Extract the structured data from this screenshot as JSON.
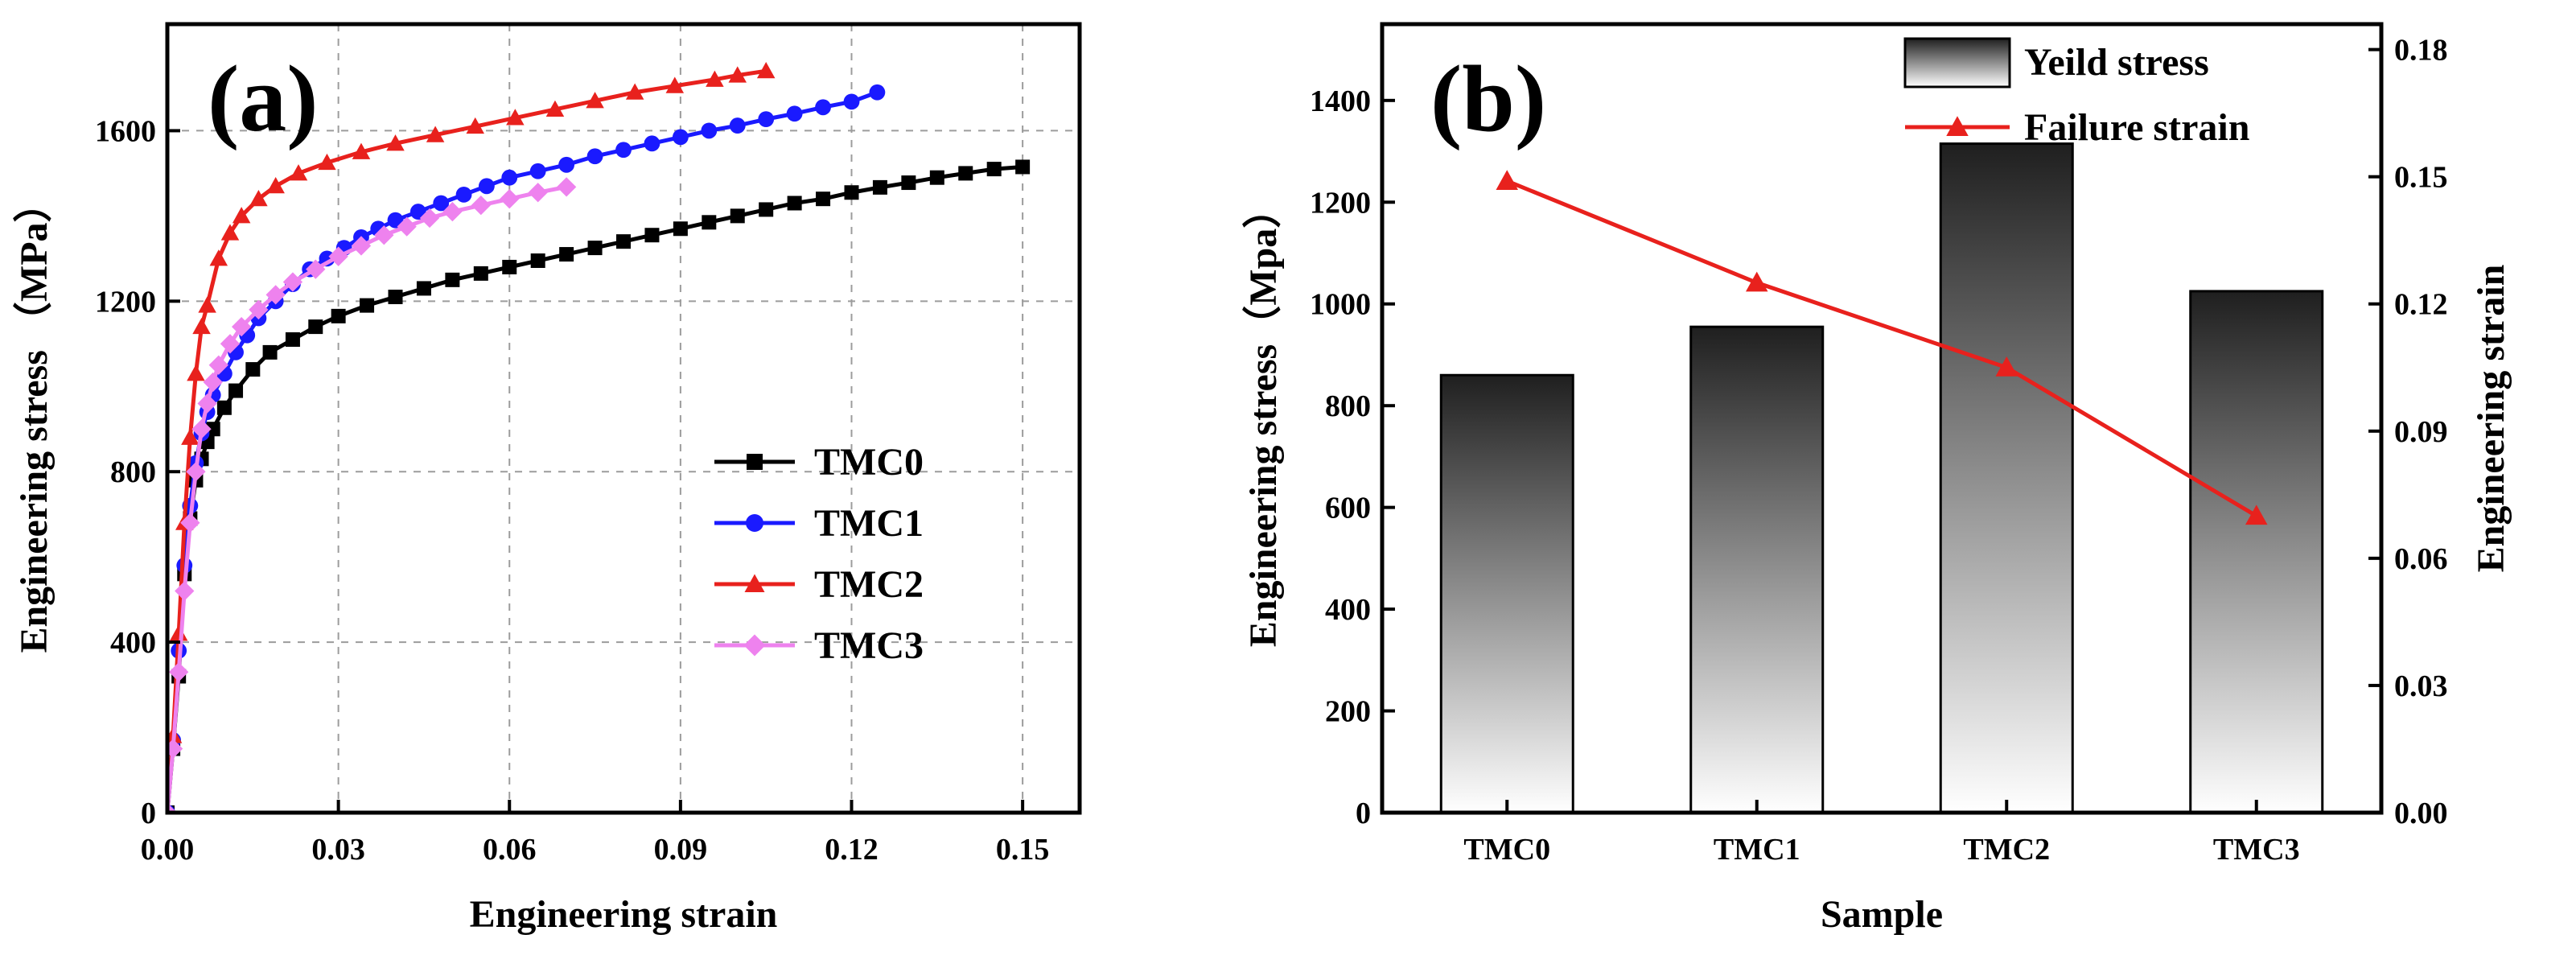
{
  "chart_data": [
    {
      "type": "line",
      "panel_label": "(a)",
      "xlabel": "Engineering strain",
      "ylabel": "Engineering stress （MPa）",
      "xlim": [
        0,
        0.16
      ],
      "ylim": [
        0,
        1850
      ],
      "xticks": [
        0,
        0.03,
        0.06,
        0.09,
        0.12,
        0.15
      ],
      "xtick_labels": [
        "0.00",
        "0.03",
        "0.06",
        "0.09",
        "0.12",
        "0.15"
      ],
      "yticks": [
        0,
        400,
        800,
        1200,
        1600
      ],
      "ytick_labels": [
        "0",
        "400",
        "800",
        "1200",
        "1600"
      ],
      "grid": true,
      "legend_position": "center-right",
      "series": [
        {
          "name": "TMC0",
          "color": "#000000",
          "marker": "square",
          "points": [
            [
              0,
              0
            ],
            [
              0.001,
              150
            ],
            [
              0.002,
              320
            ],
            [
              0.003,
              560
            ],
            [
              0.004,
              690
            ],
            [
              0.005,
              780
            ],
            [
              0.006,
              830
            ],
            [
              0.007,
              870
            ],
            [
              0.008,
              900
            ],
            [
              0.01,
              950
            ],
            [
              0.012,
              990
            ],
            [
              0.015,
              1040
            ],
            [
              0.018,
              1080
            ],
            [
              0.022,
              1110
            ],
            [
              0.026,
              1140
            ],
            [
              0.03,
              1165
            ],
            [
              0.035,
              1190
            ],
            [
              0.04,
              1210
            ],
            [
              0.045,
              1230
            ],
            [
              0.05,
              1250
            ],
            [
              0.055,
              1265
            ],
            [
              0.06,
              1280
            ],
            [
              0.065,
              1295
            ],
            [
              0.07,
              1310
            ],
            [
              0.075,
              1325
            ],
            [
              0.08,
              1340
            ],
            [
              0.085,
              1355
            ],
            [
              0.09,
              1370
            ],
            [
              0.095,
              1385
            ],
            [
              0.1,
              1400
            ],
            [
              0.105,
              1415
            ],
            [
              0.11,
              1430
            ],
            [
              0.115,
              1440
            ],
            [
              0.12,
              1455
            ],
            [
              0.125,
              1467
            ],
            [
              0.13,
              1478
            ],
            [
              0.135,
              1490
            ],
            [
              0.14,
              1500
            ],
            [
              0.145,
              1510
            ],
            [
              0.15,
              1515
            ]
          ]
        },
        {
          "name": "TMC1",
          "color": "#1a1aff",
          "marker": "circle",
          "points": [
            [
              0,
              0
            ],
            [
              0.001,
              170
            ],
            [
              0.002,
              380
            ],
            [
              0.003,
              580
            ],
            [
              0.004,
              720
            ],
            [
              0.005,
              820
            ],
            [
              0.006,
              890
            ],
            [
              0.007,
              940
            ],
            [
              0.008,
              980
            ],
            [
              0.01,
              1030
            ],
            [
              0.012,
              1080
            ],
            [
              0.014,
              1120
            ],
            [
              0.016,
              1160
            ],
            [
              0.019,
              1200
            ],
            [
              0.022,
              1240
            ],
            [
              0.025,
              1275
            ],
            [
              0.028,
              1300
            ],
            [
              0.031,
              1325
            ],
            [
              0.034,
              1350
            ],
            [
              0.037,
              1370
            ],
            [
              0.04,
              1390
            ],
            [
              0.044,
              1410
            ],
            [
              0.048,
              1430
            ],
            [
              0.052,
              1450
            ],
            [
              0.056,
              1470
            ],
            [
              0.06,
              1490
            ],
            [
              0.065,
              1505
            ],
            [
              0.07,
              1520
            ],
            [
              0.075,
              1540
            ],
            [
              0.08,
              1555
            ],
            [
              0.085,
              1570
            ],
            [
              0.09,
              1585
            ],
            [
              0.095,
              1600
            ],
            [
              0.1,
              1612
            ],
            [
              0.105,
              1627
            ],
            [
              0.11,
              1640
            ],
            [
              0.115,
              1655
            ],
            [
              0.12,
              1668
            ],
            [
              0.1245,
              1690
            ]
          ]
        },
        {
          "name": "TMC2",
          "color": "#e8211d",
          "marker": "triangle",
          "points": [
            [
              0,
              0
            ],
            [
              0.001,
              180
            ],
            [
              0.002,
              420
            ],
            [
              0.003,
              680
            ],
            [
              0.004,
              880
            ],
            [
              0.005,
              1030
            ],
            [
              0.006,
              1140
            ],
            [
              0.007,
              1190
            ],
            [
              0.009,
              1300
            ],
            [
              0.011,
              1360
            ],
            [
              0.013,
              1400
            ],
            [
              0.016,
              1440
            ],
            [
              0.019,
              1470
            ],
            [
              0.023,
              1500
            ],
            [
              0.028,
              1525
            ],
            [
              0.034,
              1550
            ],
            [
              0.04,
              1570
            ],
            [
              0.047,
              1590
            ],
            [
              0.054,
              1610
            ],
            [
              0.061,
              1630
            ],
            [
              0.068,
              1650
            ],
            [
              0.075,
              1670
            ],
            [
              0.082,
              1690
            ],
            [
              0.089,
              1705
            ],
            [
              0.096,
              1720
            ],
            [
              0.1,
              1730
            ],
            [
              0.105,
              1740
            ]
          ]
        },
        {
          "name": "TMC3",
          "color": "#ee82ee",
          "marker": "diamond",
          "points": [
            [
              0,
              0
            ],
            [
              0.001,
              150
            ],
            [
              0.002,
              330
            ],
            [
              0.003,
              520
            ],
            [
              0.004,
              680
            ],
            [
              0.005,
              800
            ],
            [
              0.006,
              900
            ],
            [
              0.007,
              960
            ],
            [
              0.008,
              1010
            ],
            [
              0.009,
              1050
            ],
            [
              0.011,
              1100
            ],
            [
              0.013,
              1140
            ],
            [
              0.016,
              1180
            ],
            [
              0.019,
              1215
            ],
            [
              0.022,
              1245
            ],
            [
              0.026,
              1275
            ],
            [
              0.03,
              1305
            ],
            [
              0.034,
              1330
            ],
            [
              0.038,
              1355
            ],
            [
              0.042,
              1375
            ],
            [
              0.046,
              1395
            ],
            [
              0.05,
              1410
            ],
            [
              0.055,
              1425
            ],
            [
              0.06,
              1440
            ],
            [
              0.065,
              1455
            ],
            [
              0.07,
              1468
            ]
          ]
        }
      ]
    },
    {
      "type": "bar+line",
      "panel_label": "(b)",
      "xlabel": "Sample",
      "ylabel_left": "Engineering stress（Mpa）",
      "ylabel_right": "Engineering strain",
      "categories": [
        "TMC0",
        "TMC1",
        "TMC2",
        "TMC3"
      ],
      "ylim_left": [
        0,
        1550
      ],
      "ylim_right": [
        0,
        0.186
      ],
      "yticks_left": [
        0,
        200,
        400,
        600,
        800,
        1000,
        1200,
        1400
      ],
      "ytick_labels_left": [
        "0",
        "200",
        "400",
        "600",
        "800",
        "1000",
        "1200",
        "1400"
      ],
      "yticks_right": [
        0,
        0.03,
        0.06,
        0.09,
        0.12,
        0.15,
        0.18
      ],
      "ytick_labels_right": [
        "0.00",
        "0.03",
        "0.06",
        "0.09",
        "0.12",
        "0.15",
        "0.18"
      ],
      "grid": false,
      "legend_position": "top-right",
      "series": [
        {
          "name": "Yeild stress",
          "type": "bar",
          "axis": "left",
          "values": [
            860,
            955,
            1315,
            1025
          ]
        },
        {
          "name": "Failure strain",
          "type": "line",
          "axis": "right",
          "color": "#e8211d",
          "marker": "triangle",
          "values": [
            0.149,
            0.125,
            0.105,
            0.07
          ]
        }
      ]
    }
  ]
}
